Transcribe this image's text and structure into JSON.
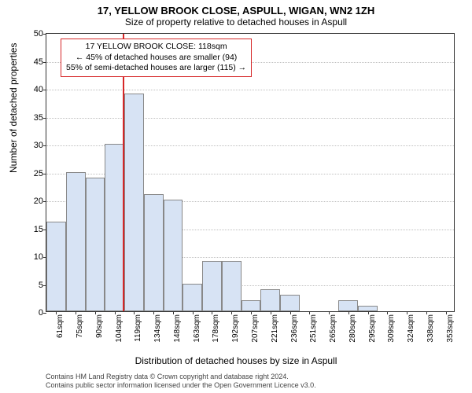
{
  "title": "17, YELLOW BROOK CLOSE, ASPULL, WIGAN, WN2 1ZH",
  "subtitle": "Size of property relative to detached houses in Aspull",
  "y_axis_label": "Number of detached properties",
  "x_axis_label": "Distribution of detached houses by size in Aspull",
  "footer_line1": "Contains HM Land Registry data © Crown copyright and database right 2024.",
  "footer_line2": "Contains public sector information licensed under the Open Government Licence v3.0.",
  "chart": {
    "type": "histogram",
    "ylim": [
      0,
      50
    ],
    "ytick_step": 5,
    "background_color": "#ffffff",
    "grid_color": "#bfbfbf",
    "bar_fill": "#d7e3f4",
    "bar_border": "#888888",
    "marker_color": "#d62728",
    "marker_value": 118,
    "x_labels": [
      "61sqm",
      "75sqm",
      "90sqm",
      "104sqm",
      "119sqm",
      "134sqm",
      "148sqm",
      "163sqm",
      "178sqm",
      "192sqm",
      "207sqm",
      "221sqm",
      "236sqm",
      "251sqm",
      "265sqm",
      "280sqm",
      "295sqm",
      "309sqm",
      "324sqm",
      "338sqm",
      "353sqm"
    ],
    "values": [
      16,
      25,
      24,
      30,
      39,
      21,
      20,
      5,
      9,
      9,
      2,
      4,
      3,
      0,
      0,
      2,
      1,
      0,
      0,
      0,
      0
    ],
    "annotation": {
      "line1": "17 YELLOW BROOK CLOSE: 118sqm",
      "line2": "← 45% of detached houses are smaller (94)",
      "line3": "55% of semi-detached houses are larger (115) →"
    }
  }
}
